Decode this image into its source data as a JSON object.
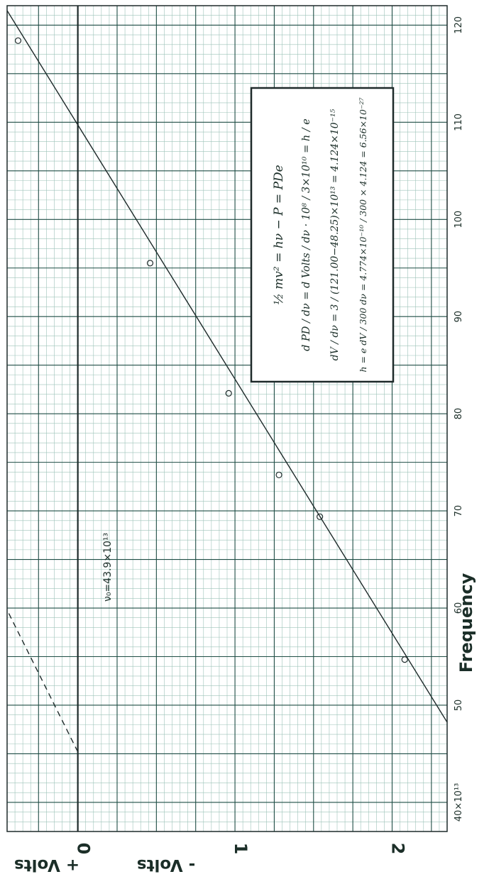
{
  "chart_data": {
    "type": "scatter",
    "orientation": "rotated-90",
    "xlabel": "Frequency",
    "ylabel_pos": "+ Volts",
    "ylabel_neg": "- Volts",
    "x_ticks": [
      "40×10¹³",
      "50",
      "60",
      "70",
      "80",
      "90",
      "100",
      "110",
      "120"
    ],
    "y_ticks": [
      "0",
      "1",
      "2"
    ],
    "xlim": [
      37,
      122
    ],
    "ylim": [
      -0.45,
      2.35
    ],
    "grid": true,
    "series": [
      {
        "points": [
          {
            "x": 54.7,
            "y": 2.08
          },
          {
            "x": 69.4,
            "y": 1.54
          },
          {
            "x": 73.7,
            "y": 1.28
          },
          {
            "x": 82.1,
            "y": 0.96
          },
          {
            "x": 95.5,
            "y": 0.46
          },
          {
            "x": 118.4,
            "y": -0.38
          }
        ],
        "fit_line": {
          "x0": 48.25,
          "y0": 2.35,
          "x1": 121.5,
          "y1": -0.45
        }
      }
    ],
    "dashed_line": {
      "x0": 45.2,
      "y0": 0.0,
      "x1": 59.8,
      "y1": -0.45
    },
    "annotations": {
      "v0_label": "ν₀=43.9×10¹³",
      "equations": [
        "½ mv² = hν − P = PDe",
        "d PD / dν = d Volts / dν · 10⁸ / 3×10¹⁰ = h / e",
        "dV / dν = 3 / (121.00−48.25)×10¹³ = 4.124×10⁻¹⁵",
        "h = e dV / 300 dν = 4.774×10⁻¹⁰ / 300 × 4.124 = 6.56×10⁻²⁷"
      ]
    }
  },
  "colors": {
    "grid_major": "#1f4d45",
    "grid_minor": "#9dc3b9",
    "line": "#1e2a2a",
    "text": "#1b2e28"
  }
}
